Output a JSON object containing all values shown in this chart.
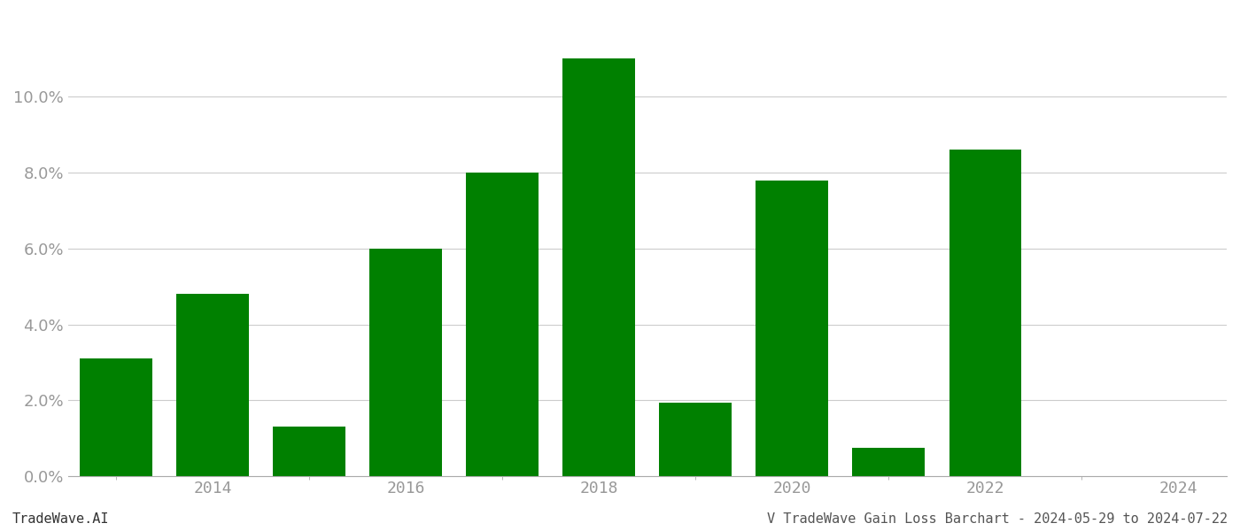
{
  "years": [
    2013,
    2014,
    2015,
    2016,
    2017,
    2018,
    2019,
    2020,
    2021,
    2022,
    2023
  ],
  "values": [
    0.031,
    0.048,
    0.013,
    0.06,
    0.08,
    0.11,
    0.0195,
    0.078,
    0.0075,
    0.086,
    0.0
  ],
  "bar_color": "#008000",
  "background_color": "#ffffff",
  "grid_color": "#cccccc",
  "xlabel": "",
  "ylabel": "",
  "xlim": [
    2012.5,
    2024.5
  ],
  "ylim": [
    0,
    0.122
  ],
  "yticks": [
    0.0,
    0.02,
    0.04,
    0.06,
    0.08,
    0.1
  ],
  "xticks": [
    2014,
    2016,
    2018,
    2020,
    2022,
    2024
  ],
  "footer_left": "TradeWave.AI",
  "footer_right": "V TradeWave Gain Loss Barchart - 2024-05-29 to 2024-07-22",
  "bar_width": 0.75,
  "tick_label_color": "#999999",
  "footer_fontsize": 11,
  "tick_fontsize": 13
}
